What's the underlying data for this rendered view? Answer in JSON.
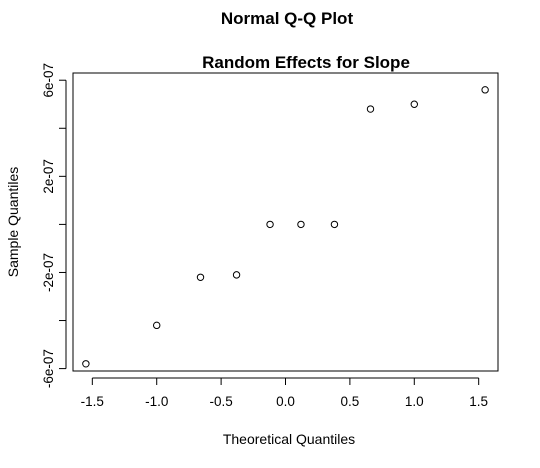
{
  "chart_data": {
    "type": "scatter",
    "title": "Normal Q-Q Plot",
    "subtitle": "Random Effects for Slope",
    "xlabel": "Theoretical Quantiles",
    "ylabel": "Sample Quantiles",
    "xlim": [
      -1.65,
      1.65
    ],
    "ylim": [
      -6.1e-07,
      6.3e-07
    ],
    "x_ticks": [
      -1.5,
      -1.0,
      -0.5,
      0.0,
      0.5,
      1.0,
      1.5
    ],
    "x_tick_labels": [
      "-1.5",
      "-1.0",
      "-0.5",
      "0.0",
      "0.5",
      "1.0",
      "1.5"
    ],
    "y_ticks": [
      -6e-07,
      -4e-07,
      -2e-07,
      0,
      2e-07,
      4e-07,
      6e-07
    ],
    "y_tick_labels": [
      "-6e-07",
      "",
      "-2e-07",
      "",
      "2e-07",
      "",
      "6e-07"
    ],
    "grid": false,
    "points": [
      {
        "x": -1.55,
        "y": -5.8e-07
      },
      {
        "x": -1.0,
        "y": -4.2e-07
      },
      {
        "x": -0.66,
        "y": -2.2e-07
      },
      {
        "x": -0.38,
        "y": -2.1e-07
      },
      {
        "x": -0.12,
        "y": 0.0
      },
      {
        "x": 0.12,
        "y": 0.0
      },
      {
        "x": 0.38,
        "y": 0.0
      },
      {
        "x": 0.66,
        "y": 4.8e-07
      },
      {
        "x": 1.0,
        "y": 5e-07
      },
      {
        "x": 1.55,
        "y": 5.6e-07
      }
    ]
  }
}
